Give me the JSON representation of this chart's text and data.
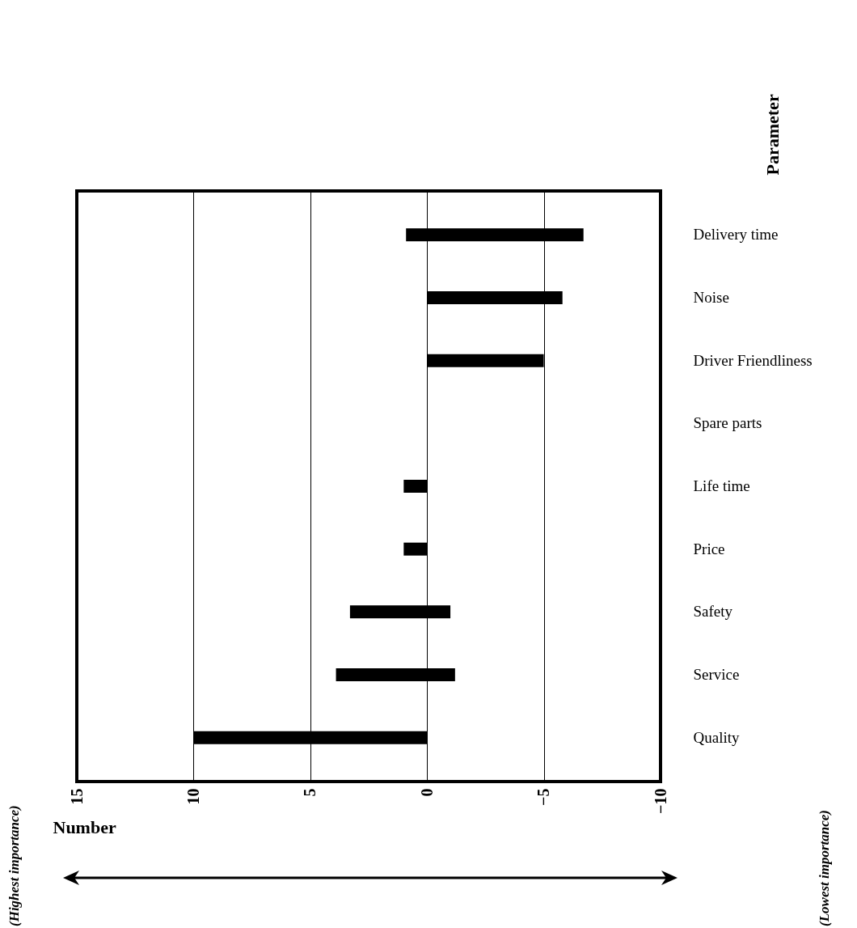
{
  "chart_data": {
    "type": "bar",
    "orientation": "horizontal",
    "xlabel": "Number",
    "ylabel": "Parameter",
    "categories": [
      "Delivery time",
      "Noise",
      "Driver Friendliness",
      "Spare parts",
      "Life time",
      "Price",
      "Safety",
      "Service",
      "Quality"
    ],
    "base": [
      0.9,
      0,
      0,
      null,
      1,
      1,
      3.3,
      3.9,
      10
    ],
    "values": [
      -7.6,
      -5.8,
      -5,
      null,
      -1,
      -1,
      -4.3,
      -5.1,
      -10
    ],
    "color": "#000000",
    "xlim": [
      15,
      -10
    ],
    "xticks": [
      15,
      10,
      5,
      0,
      -5,
      -10
    ],
    "grid": "x",
    "annotations": [
      "(Highest importance)",
      "(Lowest importance)"
    ]
  }
}
